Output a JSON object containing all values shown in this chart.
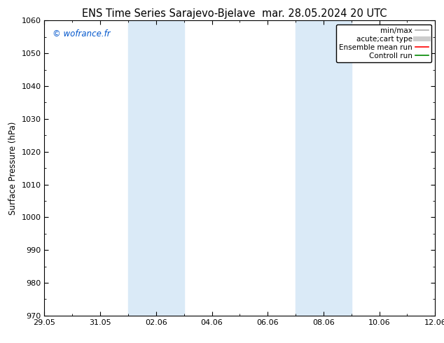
{
  "title_left": "ENS Time Series Sarajevo-Bjelave",
  "title_right": "mar. 28.05.2024 20 UTC",
  "ylabel": "Surface Pressure (hPa)",
  "ylim": [
    970,
    1060
  ],
  "yticks": [
    970,
    980,
    990,
    1000,
    1010,
    1020,
    1030,
    1040,
    1050,
    1060
  ],
  "xtick_labels": [
    "29.05",
    "31.05",
    "02.06",
    "04.06",
    "06.06",
    "08.06",
    "10.06",
    "12.06"
  ],
  "xtick_positions": [
    0,
    2,
    4,
    6,
    8,
    10,
    12,
    14
  ],
  "xlim": [
    0,
    14
  ],
  "shaded_bands": [
    {
      "xmin": 3.0,
      "xmax": 3.9
    },
    {
      "xmin": 3.9,
      "xmax": 4.8
    },
    {
      "xmin": 9.0,
      "xmax": 9.9
    },
    {
      "xmin": 9.9,
      "xmax": 10.8
    }
  ],
  "shaded_color": "#daeaf7",
  "watermark": "© wofrance.fr",
  "watermark_color": "#0055cc",
  "legend_entries": [
    {
      "label": "min/max",
      "color": "#aaaaaa",
      "lw": 1.2
    },
    {
      "label": "acute;cart type",
      "color": "#cccccc",
      "lw": 5
    },
    {
      "label": "Ensemble mean run",
      "color": "#ff0000",
      "lw": 1.2
    },
    {
      "label": "Controll run",
      "color": "#008800",
      "lw": 1.2
    }
  ],
  "bg_color": "#ffffff",
  "title_fontsize": 10.5,
  "tick_fontsize": 8,
  "ylabel_fontsize": 8.5,
  "watermark_fontsize": 8.5,
  "legend_fontsize": 7.5
}
